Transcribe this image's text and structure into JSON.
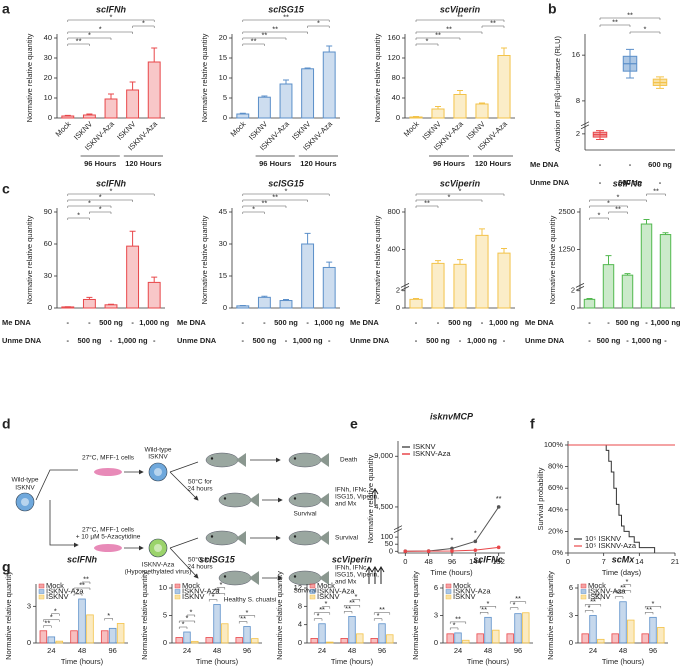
{
  "panels": [
    "a",
    "b",
    "c",
    "d",
    "e",
    "f",
    "g"
  ],
  "diagram": {
    "source": [
      "Wild-type",
      "ISKNV"
    ],
    "top_condition": "27°C, MFF-1 cells",
    "top_virus": [
      "Wild-type",
      "ISKNV"
    ],
    "death": "Death",
    "heat_top": [
      "50°C for",
      "24 hours"
    ],
    "survival_top": "Survival",
    "genes_top": [
      "IFNh, IFNc,",
      "ISG15, Viperin,",
      "and Mx"
    ],
    "bottom_condition": [
      "27°C, MFF-1 cells",
      "+ 10 µM 5-Azacytidine"
    ],
    "bottom_virus": [
      "ISKNV-Aza",
      "(Hypomethylated virus)"
    ],
    "survival_mid": "Survival",
    "heat_bottom": [
      "50°C for",
      "24 hours"
    ],
    "survival_bottom": "Survival",
    "genes_bottom": [
      "IFNh, IFNc,",
      "ISG15, Viperin,",
      "and Mx"
    ],
    "healthy": "Healthy S. chuatsi"
  },
  "chart_data": [
    {
      "type": "bar",
      "title": "scIFNh",
      "ylabel": "Normative relative quantity",
      "categories": [
        "Mock",
        "ISKNV",
        "ISKNV-Aza",
        "ISKNV",
        "ISKNV-Aza"
      ],
      "group_labels": [
        "96 Hours",
        "120 Hours"
      ],
      "values": [
        1,
        1.5,
        9.5,
        14,
        28
      ],
      "errors": [
        0.3,
        0.5,
        2.5,
        4,
        7
      ],
      "color": "#e8474a",
      "ylim": [
        0,
        40
      ],
      "yticks": [
        0,
        10,
        20,
        30,
        40
      ],
      "annotations": [
        "*",
        "*",
        "*",
        "*",
        "**"
      ]
    },
    {
      "type": "bar",
      "title": "scISG15",
      "ylabel": "Normative relative quantity",
      "categories": [
        "Mock",
        "ISKNV",
        "ISKNV-Aza",
        "ISKNV",
        "ISKNV-Aza"
      ],
      "group_labels": [
        "96 Hours",
        "120 Hours"
      ],
      "values": [
        1,
        5.2,
        8.5,
        12.3,
        16.5
      ],
      "errors": [
        0.2,
        0.3,
        1,
        0.2,
        1.5
      ],
      "color": "#5b8fc9",
      "ylim": [
        0,
        20
      ],
      "yticks": [
        0,
        5,
        10,
        15,
        20
      ],
      "annotations": [
        "**",
        "*",
        "**",
        "**",
        "**"
      ]
    },
    {
      "type": "bar",
      "title": "scViperin",
      "ylabel": "Normative relative quantity",
      "categories": [
        "Mock",
        "ISKNV",
        "ISKNV-Aza",
        "ISKNV",
        "ISKNV-Aza"
      ],
      "group_labels": [
        "96 Hours",
        "120 Hours"
      ],
      "values": [
        2,
        18,
        47,
        28,
        125
      ],
      "errors": [
        1,
        5,
        8,
        2,
        15
      ],
      "color": "#f3c34a",
      "ylim": [
        0,
        160
      ],
      "yticks": [
        0,
        40,
        80,
        120,
        160
      ],
      "annotations": [
        "**",
        "**",
        "**",
        "**",
        "*"
      ]
    },
    {
      "type": "box",
      "ylabel": "Activation of IFNβ-luciferase (RLU)",
      "boxes": [
        {
          "whislo": 1.3,
          "q1": 1.6,
          "med": 1.9,
          "q3": 2.2,
          "whishi": 2.4
        },
        {
          "whislo": 12,
          "q1": 13.2,
          "med": 14.5,
          "q3": 15.8,
          "whishi": 17
        },
        {
          "whislo": 10.2,
          "q1": 10.7,
          "med": 11.2,
          "q3": 11.8,
          "whishi": 12.2
        }
      ],
      "colors": [
        "#e8474a",
        "#5b8fc9",
        "#f3c34a"
      ],
      "ylim": [
        0,
        19
      ],
      "ybreak": [
        2.5,
        4.7
      ],
      "yticks": [
        2,
        8,
        16
      ],
      "rows": [
        {
          "label": "Me DNA",
          "values": [
            "-",
            "-",
            "600 ng"
          ]
        },
        {
          "label": "Unme DNA",
          "values": [
            "-",
            "600 ng",
            "-"
          ]
        }
      ],
      "annotations": [
        "**",
        "**",
        "*"
      ]
    },
    {
      "type": "bar",
      "title": "scIFNh",
      "ylabel": "Normative relative quantity",
      "values": [
        1,
        8,
        3,
        58,
        24
      ],
      "errors": [
        0.2,
        2,
        0.5,
        14,
        5
      ],
      "color": "#e8474a",
      "ylim": [
        0,
        90
      ],
      "yticks": [
        0,
        30,
        60,
        90
      ],
      "rows": [
        {
          "label": "Me DNA",
          "values": [
            "-",
            "-",
            "500 ng",
            "-",
            "1,000 ng"
          ]
        },
        {
          "label": "Unme DNA",
          "values": [
            "-",
            "500 ng",
            "-",
            "1,000 ng",
            "-"
          ]
        }
      ],
      "annotations": [
        "*",
        "*",
        "*",
        "*",
        "*"
      ]
    },
    {
      "type": "bar",
      "title": "scISG15",
      "ylabel": "Normative relative quantity",
      "values": [
        1,
        5,
        3.5,
        30,
        19
      ],
      "errors": [
        0.2,
        0.5,
        0.5,
        5,
        2.5
      ],
      "color": "#5b8fc9",
      "ylim": [
        0,
        45
      ],
      "yticks": [
        0,
        15,
        30,
        45
      ],
      "rows": [
        {
          "label": "Me DNA",
          "values": [
            "-",
            "-",
            "500 ng",
            "-",
            "1,000 ng"
          ]
        },
        {
          "label": "Unme DNA",
          "values": [
            "-",
            "500 ng",
            "-",
            "1,000 ng",
            "-"
          ]
        }
      ],
      "annotations": [
        "*",
        "**",
        "**",
        "*"
      ]
    },
    {
      "type": "bar",
      "title": "scViperin",
      "ylabel": "Normative relative quantity",
      "values": [
        1,
        250,
        240,
        550,
        360
      ],
      "errors": [
        0.1,
        30,
        50,
        70,
        50
      ],
      "color": "#f3c34a",
      "ylim": [
        0,
        800
      ],
      "ybreak": [
        2,
        50
      ],
      "yticks": [
        0,
        2,
        400,
        800
      ],
      "rows": [
        {
          "label": "Me DNA",
          "values": [
            "-",
            "-",
            "500 ng",
            "-",
            "1,000 ng"
          ]
        },
        {
          "label": "Unme DNA",
          "values": [
            "-",
            "500 ng",
            "-",
            "1,000 ng",
            "-"
          ]
        }
      ],
      "annotations": [
        "*",
        "*",
        "**"
      ]
    },
    {
      "type": "bar",
      "title": "scIFNc",
      "ylabel": "Normative relative quantity",
      "values": [
        1,
        750,
        400,
        2100,
        1750
      ],
      "errors": [
        0.1,
        300,
        50,
        150,
        60
      ],
      "color": "#52b84f",
      "ylim": [
        0,
        2500
      ],
      "ybreak": [
        2,
        170
      ],
      "yticks": [
        0,
        2,
        1250,
        2500
      ],
      "rows": [
        {
          "label": "Me DNA",
          "values": [
            "-",
            "-",
            "500 ng",
            "-",
            "1,000 ng"
          ]
        },
        {
          "label": "Unme DNA",
          "values": [
            "-",
            "500 ng",
            "-",
            "1,000 ng",
            "-"
          ]
        }
      ],
      "annotations": [
        "**",
        "*",
        "*",
        "**",
        "*"
      ]
    },
    {
      "type": "line",
      "title": "isknvMCP",
      "xlabel": "Time (hours)",
      "ylabel": "Normative relative quantity",
      "x": [
        0,
        48,
        96,
        144,
        192
      ],
      "series": [
        {
          "name": "ISKNV",
          "color": "#555555",
          "values": [
            0.5,
            2,
            20,
            70,
            4500
          ]
        },
        {
          "name": "ISKNV-Aza",
          "color": "#e8474a",
          "values": [
            0.3,
            1,
            2,
            8,
            28
          ]
        }
      ],
      "xlim": [
        -15,
        205
      ],
      "xticks": [
        0,
        48,
        96,
        144,
        192
      ],
      "ylim": [
        -12,
        10000
      ],
      "ybreak": [
        125,
        3000
      ],
      "yticks": [
        0,
        50,
        100,
        {
          "value": 4500,
          "label": "4,500"
        },
        {
          "value": 9000,
          "label": "9,000"
        }
      ],
      "legend": "upper left",
      "annotations": [
        "*",
        "*",
        "**"
      ]
    },
    {
      "type": "step",
      "xlabel": "Time (days)",
      "ylabel": "Survival probability",
      "series": [
        {
          "name": "10⁵ ISKNV",
          "color": "#333333",
          "x": [
            0,
            7.5,
            8,
            8.5,
            9,
            9.5,
            10,
            10.5,
            11,
            12,
            13,
            14,
            15,
            17
          ],
          "values": [
            100,
            95,
            85,
            75,
            60,
            45,
            35,
            25,
            20,
            15,
            10,
            5,
            5,
            0
          ]
        },
        {
          "name": "10⁵ ISKNV-Aza",
          "color": "#e8474a",
          "x": [
            0,
            21
          ],
          "values": [
            100,
            100
          ]
        }
      ],
      "xlim": [
        0,
        21
      ],
      "xticks": [
        0,
        7,
        14,
        21
      ],
      "ylim": [
        0,
        100
      ],
      "yticks": [
        {
          "value": 0,
          "label": "0%"
        },
        {
          "value": 20,
          "label": "20%"
        },
        {
          "value": 40,
          "label": "40%"
        },
        {
          "value": 60,
          "label": "60%"
        },
        {
          "value": 80,
          "label": "80%"
        },
        {
          "value": 100,
          "label": "100%"
        }
      ],
      "legend": "lower left"
    },
    {
      "type": "grouped_bar",
      "title": "scIFNh",
      "xlabel": "Time (hours)",
      "ylabel": "Normative relative quantity",
      "categories": [
        "24",
        "48",
        "96"
      ],
      "series": [
        {
          "name": "Mock",
          "color": "#e8474a",
          "values": [
            1,
            1,
            1
          ]
        },
        {
          "name": "ISKNV-Aza",
          "color": "#5b8fc9",
          "values": [
            0.5,
            3.6,
            1.2
          ]
        },
        {
          "name": "ISKNV",
          "color": "#f3c34a",
          "values": [
            0.15,
            2.3,
            1.6
          ]
        }
      ],
      "ylim": [
        0,
        4.5
      ],
      "yticks": [
        0,
        3
      ],
      "legend": "upper left",
      "annotations": [
        [
          "**",
          "*",
          "*"
        ],
        [
          "*",
          "**",
          "**"
        ],
        [
          "*"
        ]
      ]
    },
    {
      "type": "grouped_bar",
      "title": "scISG15",
      "xlabel": "Time (hours)",
      "ylabel": "Normative relative quantity",
      "categories": [
        "24",
        "48",
        "96"
      ],
      "series": [
        {
          "name": "Mock",
          "color": "#e8474a",
          "values": [
            1,
            1,
            1
          ]
        },
        {
          "name": "ISKNV-Aza",
          "color": "#5b8fc9",
          "values": [
            2,
            7,
            3
          ]
        },
        {
          "name": "ISKNV",
          "color": "#f3c34a",
          "values": [
            0.3,
            3.5,
            0.8
          ]
        }
      ],
      "ylim": [
        0,
        10
      ],
      "yticks": [
        0,
        5,
        10
      ],
      "legend": "upper left",
      "annotations": [
        [
          "*",
          "*",
          "*"
        ],
        [
          "*",
          "**",
          "*"
        ],
        [
          "**",
          "*"
        ]
      ]
    },
    {
      "type": "grouped_bar",
      "title": "scViperin",
      "xlabel": "Time (hours)",
      "ylabel": "Normative relative quantity",
      "categories": [
        "24",
        "48",
        "96"
      ],
      "series": [
        {
          "name": "Mock",
          "color": "#e8474a",
          "values": [
            1,
            1,
            1
          ]
        },
        {
          "name": "ISKNV-Aza",
          "color": "#5b8fc9",
          "values": [
            4.2,
            5.8,
            4.2
          ]
        },
        {
          "name": "ISKNV",
          "color": "#f3c34a",
          "values": [
            0.2,
            2,
            1.8
          ]
        }
      ],
      "ylim": [
        0,
        12
      ],
      "yticks": [
        0,
        4,
        8,
        12
      ],
      "legend": "upper left",
      "annotations": [
        [
          "*",
          "**",
          "*"
        ],
        [
          "**",
          "**",
          "*"
        ],
        [
          "*",
          "**"
        ]
      ]
    },
    {
      "type": "grouped_bar",
      "title": "scIFNc",
      "xlabel": "Time (hours)",
      "ylabel": "Normative relative quantity",
      "categories": [
        "24",
        "48",
        "96"
      ],
      "series": [
        {
          "name": "Mock",
          "color": "#e8474a",
          "values": [
            1,
            1,
            1
          ]
        },
        {
          "name": "ISKNV-Aza",
          "color": "#5b8fc9",
          "values": [
            1.1,
            2.8,
            3.2
          ]
        },
        {
          "name": "ISKNV",
          "color": "#f3c34a",
          "values": [
            0.3,
            1.4,
            3.3
          ]
        }
      ],
      "ylim": [
        0,
        6
      ],
      "yticks": [
        0,
        3,
        6
      ],
      "legend": "upper left",
      "annotations": [
        [
          "*",
          "**"
        ],
        [
          "**",
          "*"
        ],
        [
          "*",
          "**"
        ]
      ]
    },
    {
      "type": "grouped_bar",
      "title": "scMx",
      "xlabel": "Time (hours)",
      "ylabel": "Normative relative quantity",
      "categories": [
        "24",
        "48",
        "96"
      ],
      "series": [
        {
          "name": "Mock",
          "color": "#e8474a",
          "values": [
            1,
            1,
            1
          ]
        },
        {
          "name": "ISKNV-Aza",
          "color": "#5b8fc9",
          "values": [
            3,
            4.5,
            2.8
          ]
        },
        {
          "name": "ISKNV",
          "color": "#f3c34a",
          "values": [
            0.4,
            2.5,
            1.7
          ]
        }
      ],
      "ylim": [
        0,
        6
      ],
      "yticks": [
        0,
        3,
        6
      ],
      "legend": "upper left",
      "annotations": [
        [
          "*",
          "**",
          "**"
        ],
        [
          "**",
          "**",
          "*"
        ],
        [
          "**",
          "*"
        ]
      ]
    }
  ]
}
